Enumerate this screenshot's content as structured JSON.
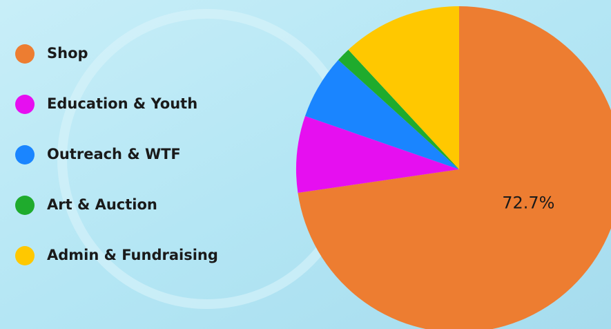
{
  "chart_data": {
    "type": "pie",
    "categories": [
      "Shop",
      "Education & Youth",
      "Outreach & WTF",
      "Art & Auction",
      "Admin & Fundraising"
    ],
    "values": [
      72.7,
      7.6,
      6.4,
      1.4,
      11.9
    ],
    "value_labels": [
      "72.7%",
      null,
      null,
      null,
      null
    ],
    "colors": [
      "#ed7d31",
      "#e60ff0",
      "#1a85ff",
      "#1fab2d",
      "#ffc800"
    ],
    "legend": "left"
  }
}
